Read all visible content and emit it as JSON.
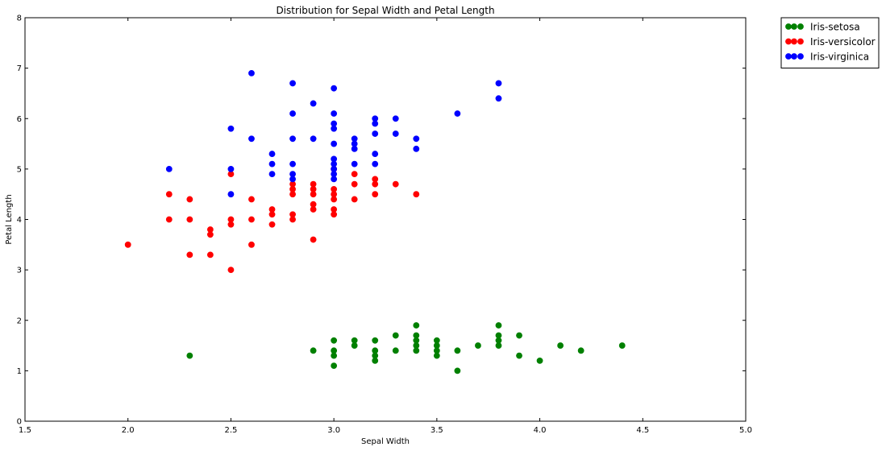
{
  "chart_data": {
    "type": "scatter",
    "title": "Distribution for Sepal Width and Petal Length",
    "xlabel": "Sepal Width",
    "ylabel": "Petal Length",
    "xlim": [
      1.5,
      5.0
    ],
    "ylim": [
      0,
      8
    ],
    "xticks": [
      "1.5",
      "2.0",
      "2.5",
      "3.0",
      "3.5",
      "4.0",
      "4.5",
      "5.0"
    ],
    "yticks": [
      "0",
      "1",
      "2",
      "3",
      "4",
      "5",
      "6",
      "7",
      "8"
    ],
    "grid": false,
    "legend_position": "outside-top-right",
    "series": [
      {
        "name": "Iris-setosa",
        "color": "#008000",
        "points": [
          [
            2.3,
            1.3
          ],
          [
            2.9,
            1.4
          ],
          [
            3.0,
            1.1
          ],
          [
            3.0,
            1.3
          ],
          [
            3.0,
            1.4
          ],
          [
            3.0,
            1.6
          ],
          [
            3.1,
            1.5
          ],
          [
            3.1,
            1.6
          ],
          [
            3.2,
            1.2
          ],
          [
            3.2,
            1.3
          ],
          [
            3.2,
            1.4
          ],
          [
            3.2,
            1.6
          ],
          [
            3.3,
            1.4
          ],
          [
            3.3,
            1.7
          ],
          [
            3.4,
            1.4
          ],
          [
            3.4,
            1.5
          ],
          [
            3.4,
            1.6
          ],
          [
            3.4,
            1.7
          ],
          [
            3.4,
            1.9
          ],
          [
            3.5,
            1.3
          ],
          [
            3.5,
            1.4
          ],
          [
            3.5,
            1.5
          ],
          [
            3.5,
            1.6
          ],
          [
            3.6,
            1.0
          ],
          [
            3.6,
            1.4
          ],
          [
            3.7,
            1.5
          ],
          [
            3.8,
            1.5
          ],
          [
            3.8,
            1.6
          ],
          [
            3.8,
            1.7
          ],
          [
            3.8,
            1.9
          ],
          [
            3.9,
            1.3
          ],
          [
            3.9,
            1.7
          ],
          [
            4.0,
            1.2
          ],
          [
            4.1,
            1.5
          ],
          [
            4.2,
            1.4
          ],
          [
            4.4,
            1.5
          ]
        ]
      },
      {
        "name": "Iris-versicolor",
        "color": "#ff0000",
        "points": [
          [
            2.0,
            3.5
          ],
          [
            2.2,
            4.0
          ],
          [
            2.2,
            4.5
          ],
          [
            2.3,
            3.3
          ],
          [
            2.3,
            4.0
          ],
          [
            2.3,
            4.4
          ],
          [
            2.4,
            3.3
          ],
          [
            2.4,
            3.7
          ],
          [
            2.4,
            3.8
          ],
          [
            2.5,
            3.0
          ],
          [
            2.5,
            3.9
          ],
          [
            2.5,
            4.0
          ],
          [
            2.5,
            4.9
          ],
          [
            2.6,
            3.5
          ],
          [
            2.6,
            4.0
          ],
          [
            2.6,
            4.4
          ],
          [
            2.7,
            3.9
          ],
          [
            2.7,
            4.1
          ],
          [
            2.7,
            4.2
          ],
          [
            2.8,
            4.0
          ],
          [
            2.8,
            4.1
          ],
          [
            2.8,
            4.5
          ],
          [
            2.8,
            4.6
          ],
          [
            2.8,
            4.7
          ],
          [
            2.9,
            3.6
          ],
          [
            2.9,
            4.2
          ],
          [
            2.9,
            4.3
          ],
          [
            2.9,
            4.5
          ],
          [
            2.9,
            4.6
          ],
          [
            2.9,
            4.7
          ],
          [
            3.0,
            4.1
          ],
          [
            3.0,
            4.2
          ],
          [
            3.0,
            4.4
          ],
          [
            3.0,
            4.5
          ],
          [
            3.0,
            4.6
          ],
          [
            3.0,
            5.0
          ],
          [
            3.1,
            4.4
          ],
          [
            3.1,
            4.7
          ],
          [
            3.1,
            4.9
          ],
          [
            3.2,
            4.5
          ],
          [
            3.2,
            4.7
          ],
          [
            3.2,
            4.8
          ],
          [
            3.3,
            4.7
          ],
          [
            3.4,
            4.5
          ]
        ]
      },
      {
        "name": "Iris-virginica",
        "color": "#0000ff",
        "points": [
          [
            2.2,
            5.0
          ],
          [
            2.5,
            4.5
          ],
          [
            2.5,
            5.0
          ],
          [
            2.5,
            5.8
          ],
          [
            2.6,
            5.6
          ],
          [
            2.6,
            6.9
          ],
          [
            2.7,
            4.9
          ],
          [
            2.7,
            5.1
          ],
          [
            2.7,
            5.3
          ],
          [
            2.8,
            4.8
          ],
          [
            2.8,
            4.9
          ],
          [
            2.8,
            5.1
          ],
          [
            2.8,
            5.6
          ],
          [
            2.8,
            6.1
          ],
          [
            2.8,
            6.7
          ],
          [
            2.9,
            5.6
          ],
          [
            2.9,
            6.3
          ],
          [
            3.0,
            4.8
          ],
          [
            3.0,
            4.9
          ],
          [
            3.0,
            5.0
          ],
          [
            3.0,
            5.1
          ],
          [
            3.0,
            5.2
          ],
          [
            3.0,
            5.5
          ],
          [
            3.0,
            5.8
          ],
          [
            3.0,
            5.9
          ],
          [
            3.0,
            6.1
          ],
          [
            3.0,
            6.6
          ],
          [
            3.1,
            5.1
          ],
          [
            3.1,
            5.4
          ],
          [
            3.1,
            5.5
          ],
          [
            3.1,
            5.6
          ],
          [
            3.2,
            5.1
          ],
          [
            3.2,
            5.3
          ],
          [
            3.2,
            5.7
          ],
          [
            3.2,
            5.9
          ],
          [
            3.2,
            6.0
          ],
          [
            3.3,
            5.7
          ],
          [
            3.3,
            6.0
          ],
          [
            3.4,
            5.4
          ],
          [
            3.4,
            5.6
          ],
          [
            3.6,
            6.1
          ],
          [
            3.8,
            6.4
          ],
          [
            3.8,
            6.7
          ]
        ]
      }
    ]
  }
}
